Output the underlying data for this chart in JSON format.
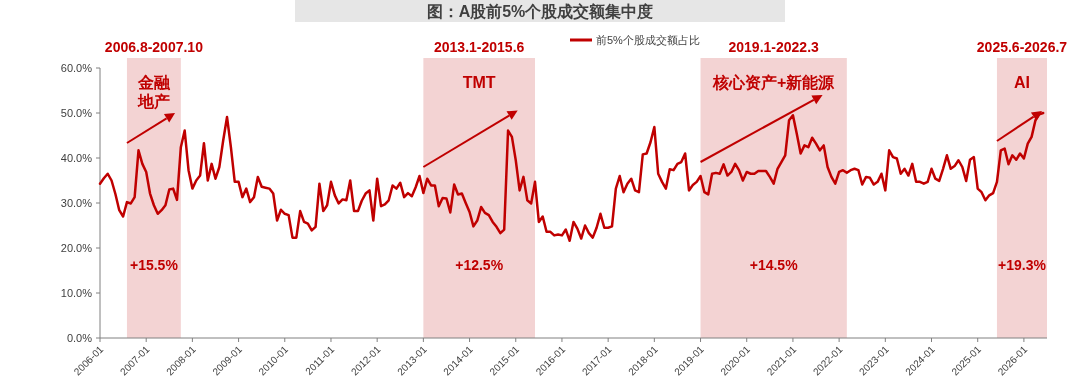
{
  "chart_data": {
    "type": "line",
    "title": "图：A股前5%个股成交额集中度",
    "legend": "top",
    "grid": false,
    "xlim": [
      "2006-01",
      "2026-07"
    ],
    "xticks": [
      "2006-01",
      "2007-01",
      "2008-01",
      "2009-01",
      "2010-01",
      "2011-01",
      "2012-01",
      "2013-01",
      "2014-01",
      "2015-01",
      "2016-01",
      "2017-01",
      "2018-01",
      "2019-01",
      "2020-01",
      "2021-01",
      "2022-01",
      "2023-01",
      "2024-01",
      "2025-01",
      "2026-01"
    ],
    "ylim": [
      0,
      60
    ],
    "yticks": [
      {
        "value": 0,
        "label": "0.0%"
      },
      {
        "value": 10,
        "label": "10.0%"
      },
      {
        "value": 20,
        "label": "20.0%"
      },
      {
        "value": 30,
        "label": "30.0%"
      },
      {
        "value": 40,
        "label": "40.0%"
      },
      {
        "value": 50,
        "label": "50.0%"
      },
      {
        "value": 60,
        "label": "60.0%"
      }
    ],
    "x": [
      "2006-01",
      "2006-02",
      "2006-03",
      "2006-04",
      "2006-05",
      "2006-06",
      "2006-07",
      "2006-08",
      "2006-09",
      "2006-10",
      "2006-11",
      "2006-12",
      "2007-01",
      "2007-02",
      "2007-03",
      "2007-04",
      "2007-05",
      "2007-06",
      "2007-07",
      "2007-08",
      "2007-09",
      "2007-10",
      "2007-11",
      "2007-12",
      "2008-01",
      "2008-02",
      "2008-03",
      "2008-04",
      "2008-05",
      "2008-06",
      "2008-07",
      "2008-08",
      "2008-09",
      "2008-10",
      "2008-11",
      "2008-12",
      "2009-01",
      "2009-02",
      "2009-03",
      "2009-04",
      "2009-05",
      "2009-06",
      "2009-07",
      "2009-08",
      "2009-09",
      "2009-10",
      "2009-11",
      "2009-12",
      "2010-01",
      "2010-02",
      "2010-03",
      "2010-04",
      "2010-05",
      "2010-06",
      "2010-07",
      "2010-08",
      "2010-09",
      "2010-10",
      "2010-11",
      "2010-12",
      "2011-01",
      "2011-02",
      "2011-03",
      "2011-04",
      "2011-05",
      "2011-06",
      "2011-07",
      "2011-08",
      "2011-09",
      "2011-10",
      "2011-11",
      "2011-12",
      "2012-01",
      "2012-02",
      "2012-03",
      "2012-04",
      "2012-05",
      "2012-06",
      "2012-07",
      "2012-08",
      "2012-09",
      "2012-10",
      "2012-11",
      "2012-12",
      "2013-01",
      "2013-02",
      "2013-03",
      "2013-04",
      "2013-05",
      "2013-06",
      "2013-07",
      "2013-08",
      "2013-09",
      "2013-10",
      "2013-11",
      "2013-12",
      "2014-01",
      "2014-02",
      "2014-03",
      "2014-04",
      "2014-05",
      "2014-06",
      "2014-07",
      "2014-08",
      "2014-09",
      "2014-10",
      "2014-11",
      "2014-12",
      "2015-01",
      "2015-02",
      "2015-03",
      "2015-04",
      "2015-05",
      "2015-06",
      "2015-07",
      "2015-08",
      "2015-09",
      "2015-10",
      "2015-11",
      "2015-12",
      "2016-01",
      "2016-02",
      "2016-03",
      "2016-04",
      "2016-05",
      "2016-06",
      "2016-07",
      "2016-08",
      "2016-09",
      "2016-10",
      "2016-11",
      "2016-12",
      "2017-01",
      "2017-02",
      "2017-03",
      "2017-04",
      "2017-05",
      "2017-06",
      "2017-07",
      "2017-08",
      "2017-09",
      "2017-10",
      "2017-11",
      "2017-12",
      "2018-01",
      "2018-02",
      "2018-03",
      "2018-04",
      "2018-05",
      "2018-06",
      "2018-07",
      "2018-08",
      "2018-09",
      "2018-10",
      "2018-11",
      "2018-12",
      "2019-01",
      "2019-02",
      "2019-03",
      "2019-04",
      "2019-05",
      "2019-06",
      "2019-07",
      "2019-08",
      "2019-09",
      "2019-10",
      "2019-11",
      "2019-12",
      "2020-01",
      "2020-02",
      "2020-03",
      "2020-04",
      "2020-05",
      "2020-06",
      "2020-07",
      "2020-08",
      "2020-09",
      "2020-10",
      "2020-11",
      "2020-12",
      "2021-01",
      "2021-02",
      "2021-03",
      "2021-04",
      "2021-05",
      "2021-06",
      "2021-07",
      "2021-08",
      "2021-09",
      "2021-10",
      "2021-11",
      "2021-12",
      "2022-01",
      "2022-02",
      "2022-03",
      "2022-04",
      "2022-05",
      "2022-06",
      "2022-07",
      "2022-08",
      "2022-09",
      "2022-10",
      "2022-11",
      "2022-12",
      "2023-01",
      "2023-02",
      "2023-03",
      "2023-04",
      "2023-05",
      "2023-06",
      "2023-07",
      "2023-08",
      "2023-09",
      "2023-10",
      "2023-11",
      "2023-12",
      "2024-01",
      "2024-02",
      "2024-03",
      "2024-04",
      "2024-05",
      "2024-06",
      "2024-07",
      "2024-08",
      "2024-09",
      "2024-10",
      "2024-11",
      "2024-12",
      "2025-01",
      "2025-02",
      "2025-03",
      "2025-04",
      "2025-05",
      "2025-06",
      "2025-07",
      "2025-08",
      "2025-09",
      "2025-10",
      "2025-11",
      "2025-12",
      "2026-01",
      "2026-02",
      "2026-03",
      "2026-04",
      "2026-05",
      "2026-06"
    ],
    "series": [
      {
        "name": "前5%个股成交额占比",
        "color": "#c00000",
        "values": [
          34.3,
          35.5,
          36.5,
          35.0,
          32.0,
          28.4,
          27.0,
          30.2,
          29.9,
          31.3,
          41.7,
          38.7,
          36.9,
          32.1,
          29.5,
          27.6,
          28.4,
          29.5,
          33.0,
          33.2,
          30.7,
          42.4,
          46.1,
          37.3,
          33.2,
          35.0,
          36.1,
          43.3,
          35.0,
          38.7,
          35.4,
          38.0,
          43.9,
          49.1,
          42.4,
          34.7,
          34.7,
          31.3,
          33.2,
          30.2,
          31.3,
          35.8,
          33.6,
          33.4,
          33.2,
          32.1,
          26.1,
          28.5,
          27.6,
          27.3,
          22.3,
          22.3,
          28.2,
          25.8,
          25.4,
          23.9,
          24.7,
          34.3,
          28.2,
          29.5,
          34.7,
          31.7,
          29.9,
          30.8,
          30.6,
          35.0,
          28.2,
          28.2,
          30.5,
          32.1,
          32.8,
          26.1,
          35.4,
          29.3,
          29.7,
          30.6,
          33.9,
          33.2,
          34.5,
          31.3,
          32.2,
          31.5,
          33.5,
          36.0,
          32.2,
          35.4,
          33.9,
          33.9,
          29.3,
          31.1,
          31.0,
          27.9,
          34.1,
          31.9,
          32.1,
          30.0,
          28.0,
          24.8,
          26.1,
          29.1,
          27.8,
          27.3,
          25.8,
          24.7,
          23.3,
          24.1,
          46.1,
          44.7,
          39.5,
          32.8,
          35.8,
          30.6,
          29.9,
          34.7,
          25.8,
          27.0,
          23.6,
          23.6,
          22.8,
          23.0,
          22.8,
          24.1,
          21.6,
          25.8,
          24.3,
          22.1,
          25.0,
          23.3,
          22.3,
          24.5,
          27.6,
          24.5,
          24.5,
          24.8,
          33.2,
          36.0,
          32.4,
          34.3,
          35.4,
          32.8,
          32.4,
          40.8,
          41.0,
          43.5,
          46.9,
          36.5,
          34.7,
          33.2,
          37.5,
          37.3,
          38.7,
          39.1,
          41.0,
          32.8,
          34.0,
          34.7,
          36.0,
          32.4,
          31.9,
          36.5,
          36.7,
          36.5,
          38.6,
          36.1,
          36.9,
          38.7,
          37.3,
          35.0,
          36.9,
          36.5,
          36.5,
          37.1,
          37.1,
          37.1,
          35.8,
          34.3,
          37.6,
          39.1,
          40.6,
          48.4,
          49.5,
          45.4,
          41.0,
          42.8,
          42.4,
          44.5,
          43.2,
          41.7,
          42.8,
          38.0,
          35.8,
          34.3,
          36.9,
          37.3,
          36.7,
          37.3,
          37.6,
          37.3,
          34.1,
          35.8,
          35.6,
          34.1,
          34.7,
          36.5,
          32.8,
          41.7,
          40.2,
          39.9,
          36.5,
          37.6,
          36.1,
          38.7,
          34.7,
          34.7,
          34.3,
          34.7,
          37.6,
          35.4,
          34.9,
          37.6,
          40.6,
          37.6,
          38.2,
          39.5,
          38.0,
          34.9,
          39.6,
          40.2,
          33.2,
          32.4,
          30.6,
          31.7,
          32.2,
          34.7,
          41.7,
          42.1,
          38.6,
          40.6,
          39.6,
          41.0,
          39.9,
          43.2,
          44.7,
          48.4,
          49.7,
          50.0
        ]
      }
    ],
    "bands": [
      {
        "axis": "x",
        "from": "2006-08",
        "to": "2007-10",
        "label": "2006.8-2007.10",
        "color": "#f3d3d3"
      },
      {
        "axis": "x",
        "from": "2013-01",
        "to": "2015-06",
        "label": "2013.1-2015.6",
        "color": "#f3d3d3"
      },
      {
        "axis": "x",
        "from": "2019-01",
        "to": "2022-03",
        "label": "2019.1-2022.3",
        "color": "#f3d3d3"
      },
      {
        "axis": "x",
        "from": "2025-06",
        "to": "2026-07",
        "label": "2025.6-2026.7",
        "color": "#f3d3d3"
      }
    ],
    "annotations": [
      "金融地产",
      "+15.5%",
      "TMT",
      "+12.5%",
      "核心资产+新能源",
      "+14.5%",
      "AI",
      "+19.3%"
    ]
  }
}
